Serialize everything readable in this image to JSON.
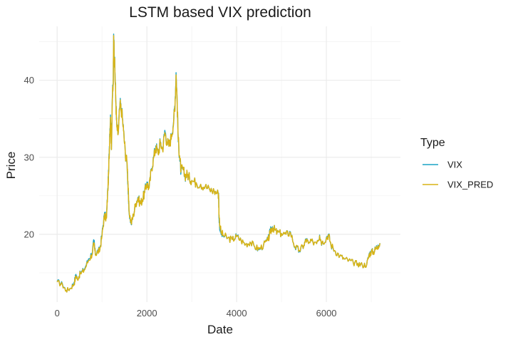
{
  "chart_data": {
    "type": "line",
    "title": "LSTM based VIX prediction",
    "xlabel": "Date",
    "ylabel": "Price",
    "xlim": [
      -400,
      7650
    ],
    "ylim": [
      11.2,
      47.0
    ],
    "x_ticks": [
      0,
      2000,
      4000,
      6000
    ],
    "x_tick_labels": [
      "0",
      "2000",
      "4000",
      "6000"
    ],
    "y_ticks": [
      20,
      30,
      40
    ],
    "y_tick_labels": [
      "20",
      "30",
      "40"
    ],
    "grid": true,
    "legend": {
      "title": "Type",
      "position": "right"
    },
    "series": [
      {
        "name": "VIX",
        "color": "#1aa3c6",
        "points": [
          [
            0,
            13.9
          ],
          [
            120,
            13.5
          ],
          [
            200,
            12.7
          ],
          [
            300,
            13.0
          ],
          [
            380,
            13.8
          ],
          [
            420,
            14.8
          ],
          [
            450,
            14.2
          ],
          [
            520,
            15.0
          ],
          [
            600,
            15.4
          ],
          [
            700,
            16.8
          ],
          [
            780,
            17.6
          ],
          [
            820,
            19.2
          ],
          [
            850,
            17.5
          ],
          [
            900,
            17.8
          ],
          [
            950,
            18.0
          ],
          [
            1000,
            20.0
          ],
          [
            1050,
            22.5
          ],
          [
            1100,
            22.2
          ],
          [
            1130,
            26.0
          ],
          [
            1150,
            28.5
          ],
          [
            1170,
            33.0
          ],
          [
            1190,
            35.5
          ],
          [
            1210,
            31.0
          ],
          [
            1230,
            38.0
          ],
          [
            1250,
            39.5
          ],
          [
            1260,
            46.0
          ],
          [
            1275,
            43.0
          ],
          [
            1290,
            41.0
          ],
          [
            1310,
            37.0
          ],
          [
            1330,
            34.0
          ],
          [
            1360,
            33.0
          ],
          [
            1400,
            37.0
          ],
          [
            1440,
            36.0
          ],
          [
            1480,
            33.5
          ],
          [
            1520,
            30.5
          ],
          [
            1560,
            29.0
          ],
          [
            1580,
            26.0
          ],
          [
            1600,
            23.0
          ],
          [
            1650,
            21.3
          ],
          [
            1700,
            22.5
          ],
          [
            1750,
            24.0
          ],
          [
            1800,
            24.8
          ],
          [
            1850,
            24.0
          ],
          [
            1900,
            24.5
          ],
          [
            1950,
            25.5
          ],
          [
            2000,
            26.8
          ],
          [
            2050,
            26.0
          ],
          [
            2100,
            28.5
          ],
          [
            2150,
            30.0
          ],
          [
            2200,
            31.5
          ],
          [
            2250,
            30.5
          ],
          [
            2300,
            32.0
          ],
          [
            2350,
            31.0
          ],
          [
            2400,
            33.5
          ],
          [
            2450,
            32.0
          ],
          [
            2500,
            31.5
          ],
          [
            2550,
            33.0
          ],
          [
            2600,
            35.0
          ],
          [
            2630,
            37.5
          ],
          [
            2650,
            41.0
          ],
          [
            2670,
            38.0
          ],
          [
            2700,
            32.0
          ],
          [
            2730,
            30.0
          ],
          [
            2760,
            28.0
          ],
          [
            2800,
            28.5
          ],
          [
            2850,
            27.5
          ],
          [
            2900,
            27.8
          ],
          [
            2950,
            27.3
          ],
          [
            3000,
            27.0
          ],
          [
            3100,
            26.7
          ],
          [
            3200,
            26.5
          ],
          [
            3300,
            26.2
          ],
          [
            3400,
            25.8
          ],
          [
            3500,
            25.6
          ],
          [
            3590,
            25.3
          ],
          [
            3600,
            25.0
          ],
          [
            3610,
            21.5
          ],
          [
            3650,
            20.1
          ],
          [
            3700,
            19.8
          ],
          [
            3800,
            19.5
          ],
          [
            3900,
            19.3
          ],
          [
            4000,
            19.8
          ],
          [
            4100,
            19.2
          ],
          [
            4200,
            18.7
          ],
          [
            4300,
            19.0
          ],
          [
            4400,
            18.4
          ],
          [
            4500,
            18.0
          ],
          [
            4600,
            18.6
          ],
          [
            4700,
            19.3
          ],
          [
            4750,
            20.4
          ],
          [
            4800,
            21.0
          ],
          [
            4850,
            20.6
          ],
          [
            4900,
            20.2
          ],
          [
            5000,
            20.1
          ],
          [
            5100,
            20.0
          ],
          [
            5200,
            20.3
          ],
          [
            5300,
            18.3
          ],
          [
            5400,
            17.8
          ],
          [
            5500,
            18.6
          ],
          [
            5550,
            19.4
          ],
          [
            5600,
            18.8
          ],
          [
            5700,
            19.0
          ],
          [
            5800,
            19.2
          ],
          [
            5850,
            19.9
          ],
          [
            5900,
            18.8
          ],
          [
            6000,
            19.6
          ],
          [
            6050,
            20.0
          ],
          [
            6100,
            18.6
          ],
          [
            6200,
            17.8
          ],
          [
            6300,
            17.2
          ],
          [
            6400,
            16.8
          ],
          [
            6500,
            16.6
          ],
          [
            6600,
            16.3
          ],
          [
            6700,
            16.2
          ],
          [
            6800,
            16.0
          ],
          [
            6900,
            16.1
          ],
          [
            6950,
            17.4
          ],
          [
            7000,
            17.8
          ],
          [
            7050,
            17.7
          ],
          [
            7100,
            18.2
          ],
          [
            7150,
            18.6
          ],
          [
            7200,
            18.8
          ]
        ]
      },
      {
        "name": "VIX_PRED",
        "color": "#d9b315",
        "points": [
          [
            0,
            13.8
          ],
          [
            120,
            13.4
          ],
          [
            200,
            12.7
          ],
          [
            300,
            13.0
          ],
          [
            380,
            13.6
          ],
          [
            420,
            14.6
          ],
          [
            450,
            14.2
          ],
          [
            520,
            14.9
          ],
          [
            600,
            15.3
          ],
          [
            700,
            16.6
          ],
          [
            780,
            17.4
          ],
          [
            820,
            18.8
          ],
          [
            850,
            17.4
          ],
          [
            900,
            17.7
          ],
          [
            950,
            17.9
          ],
          [
            1000,
            19.8
          ],
          [
            1050,
            22.3
          ],
          [
            1100,
            22.1
          ],
          [
            1130,
            25.8
          ],
          [
            1150,
            28.2
          ],
          [
            1170,
            32.7
          ],
          [
            1190,
            35.2
          ],
          [
            1210,
            31.0
          ],
          [
            1230,
            37.7
          ],
          [
            1250,
            39.3
          ],
          [
            1260,
            45.8
          ],
          [
            1275,
            42.9
          ],
          [
            1290,
            40.8
          ],
          [
            1310,
            36.8
          ],
          [
            1330,
            33.9
          ],
          [
            1360,
            33.0
          ],
          [
            1400,
            36.8
          ],
          [
            1440,
            35.9
          ],
          [
            1480,
            33.4
          ],
          [
            1520,
            30.5
          ],
          [
            1560,
            29.2
          ],
          [
            1580,
            26.5
          ],
          [
            1600,
            23.2
          ],
          [
            1650,
            21.4
          ],
          [
            1700,
            22.5
          ],
          [
            1750,
            24.0
          ],
          [
            1800,
            24.7
          ],
          [
            1850,
            24.0
          ],
          [
            1900,
            24.5
          ],
          [
            1950,
            25.4
          ],
          [
            2000,
            26.6
          ],
          [
            2050,
            26.0
          ],
          [
            2100,
            28.4
          ],
          [
            2150,
            29.9
          ],
          [
            2200,
            31.3
          ],
          [
            2250,
            30.5
          ],
          [
            2300,
            31.9
          ],
          [
            2350,
            31.0
          ],
          [
            2400,
            33.2
          ],
          [
            2450,
            32.0
          ],
          [
            2500,
            31.5
          ],
          [
            2550,
            32.9
          ],
          [
            2600,
            34.8
          ],
          [
            2630,
            37.3
          ],
          [
            2650,
            40.7
          ],
          [
            2670,
            38.0
          ],
          [
            2700,
            32.2
          ],
          [
            2730,
            30.2
          ],
          [
            2760,
            28.3
          ],
          [
            2800,
            28.5
          ],
          [
            2850,
            27.6
          ],
          [
            2900,
            27.8
          ],
          [
            2950,
            27.3
          ],
          [
            3000,
            27.0
          ],
          [
            3100,
            26.7
          ],
          [
            3200,
            26.5
          ],
          [
            3300,
            26.2
          ],
          [
            3400,
            25.8
          ],
          [
            3500,
            25.6
          ],
          [
            3590,
            25.3
          ],
          [
            3600,
            24.8
          ],
          [
            3610,
            22.2
          ],
          [
            3650,
            20.3
          ],
          [
            3700,
            19.9
          ],
          [
            3800,
            19.5
          ],
          [
            3900,
            19.3
          ],
          [
            4000,
            19.7
          ],
          [
            4100,
            19.2
          ],
          [
            4200,
            18.7
          ],
          [
            4300,
            19.0
          ],
          [
            4400,
            18.4
          ],
          [
            4500,
            18.1
          ],
          [
            4600,
            18.6
          ],
          [
            4700,
            19.2
          ],
          [
            4750,
            20.2
          ],
          [
            4800,
            20.9
          ],
          [
            4850,
            20.6
          ],
          [
            4900,
            20.2
          ],
          [
            5000,
            20.1
          ],
          [
            5100,
            20.0
          ],
          [
            5200,
            20.2
          ],
          [
            5300,
            18.4
          ],
          [
            5400,
            17.9
          ],
          [
            5500,
            18.6
          ],
          [
            5550,
            19.3
          ],
          [
            5600,
            18.8
          ],
          [
            5700,
            19.0
          ],
          [
            5800,
            19.2
          ],
          [
            5850,
            19.8
          ],
          [
            5900,
            18.9
          ],
          [
            6000,
            19.5
          ],
          [
            6050,
            19.9
          ],
          [
            6100,
            18.7
          ],
          [
            6200,
            17.8
          ],
          [
            6300,
            17.2
          ],
          [
            6400,
            16.8
          ],
          [
            6500,
            16.6
          ],
          [
            6600,
            16.3
          ],
          [
            6700,
            16.2
          ],
          [
            6800,
            16.0
          ],
          [
            6900,
            16.1
          ],
          [
            6950,
            17.3
          ],
          [
            7000,
            17.7
          ],
          [
            7050,
            17.7
          ],
          [
            7100,
            18.1
          ],
          [
            7150,
            18.5
          ],
          [
            7200,
            18.8
          ]
        ]
      }
    ]
  }
}
